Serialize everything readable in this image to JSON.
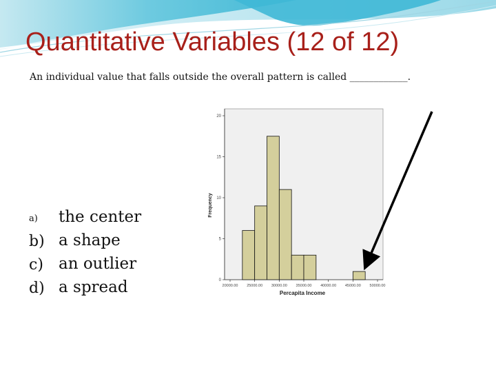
{
  "slide": {
    "title": "Quantitative Variables (12 of 12)",
    "question": "An individual value that falls outside the overall pattern is called ____________.",
    "options": [
      {
        "letter": "a)",
        "text": "the center"
      },
      {
        "letter": "b)",
        "text": "a shape"
      },
      {
        "letter": "c)",
        "text": "an outlier"
      },
      {
        "letter": "d)",
        "text": "a spread"
      }
    ]
  },
  "colors": {
    "title": "#a8201a",
    "plot_bg": "#f0f0f0",
    "bar_fill": "#d4cf9c",
    "bar_stroke": "#111111",
    "arrow": "#000000"
  },
  "chart_data": {
    "type": "bar",
    "xlabel": "Percapita Income",
    "ylabel": "Frequency",
    "x_ticks": [
      "20000.00",
      "25000.00",
      "30000.00",
      "35000.00",
      "40000.00",
      "45000.00",
      "50000.00"
    ],
    "y_ticks": [
      "0",
      "5",
      "10",
      "15",
      "20"
    ],
    "ylim": [
      0,
      20
    ],
    "xlim": [
      20000,
      50000
    ],
    "bin_width": 2500,
    "bins": [
      {
        "start": 22500,
        "count": 6
      },
      {
        "start": 25000,
        "count": 9
      },
      {
        "start": 27500,
        "count": 17.5
      },
      {
        "start": 30000,
        "count": 11
      },
      {
        "start": 32500,
        "count": 3
      },
      {
        "start": 35000,
        "count": 3
      },
      {
        "start": 45000,
        "count": 1
      }
    ],
    "grid": false
  }
}
